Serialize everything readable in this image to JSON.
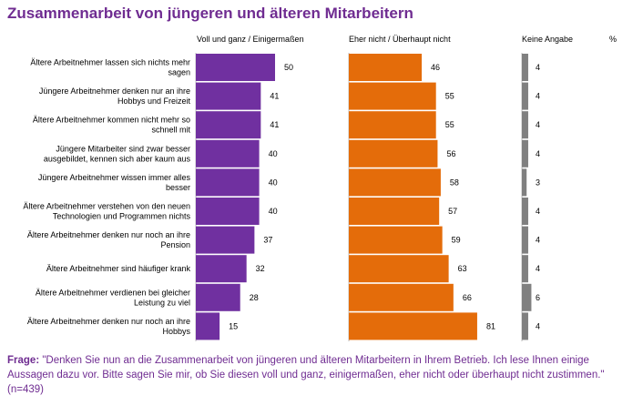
{
  "header": {
    "title": "Zusammenarbeit von jüngeren und älteren Mitarbeitern",
    "col_positive": "Voll und ganz /  Einigermaßen",
    "col_negative": "Eher nicht / Überhaupt nicht",
    "col_none": "Keine Angabe",
    "col_unit": "%"
  },
  "footnote": {
    "label": "Frage:",
    "text": " \"Denken Sie nun an die Zusammenarbeit von jüngeren und älteren Mitarbeitern in Ihrem Betrieb. Ich lese Ihnen einige Aussagen dazu vor. Bitte sagen Sie mir, ob Sie diesen voll und ganz, einigermaßen, eher nicht oder überhaupt nicht zustimmen.\" (n=439)"
  },
  "colors": {
    "positive": "#7030a0",
    "negative": "#e46c0a",
    "none": "#808080",
    "title": "#6f2c91"
  },
  "chart_data": {
    "type": "bar",
    "categories": [
      [
        "Ältere Arbeitnehmer lassen sich nichts  mehr",
        "sagen"
      ],
      [
        "Jüngere Arbeitnehmer denken nur an ihre",
        "Hobbys und Freizeit"
      ],
      [
        "Ältere Arbeitnehmer kommen nicht mehr so",
        "schnell mit"
      ],
      [
        "Jüngere Mitarbeiter sind zwar besser",
        "ausgebildet, kennen sich aber kaum aus"
      ],
      [
        "Jüngere Arbeitnehmer wissen immer alles",
        "besser"
      ],
      [
        "Ältere Arbeitnehmer verstehen von den neuen",
        "Technologien und Programmen nichts"
      ],
      [
        "Ältere Arbeitnehmer denken nur noch an ihre",
        "Pension"
      ],
      [
        "Ältere Arbeitnehmer sind häufiger krank"
      ],
      [
        "Ältere Arbeitnehmer verdienen bei gleicher",
        "Leistung zu viel"
      ],
      [
        "Ältere Arbeitnehmer denken nur noch an ihre",
        "Hobbys"
      ]
    ],
    "series": [
      {
        "name": "Voll und ganz /  Einigermaßen",
        "values": [
          50,
          41,
          41,
          40,
          40,
          40,
          37,
          32,
          28,
          15
        ]
      },
      {
        "name": "Eher nicht / Überhaupt nicht",
        "values": [
          46,
          55,
          55,
          56,
          58,
          57,
          59,
          63,
          66,
          81
        ]
      },
      {
        "name": "Keine Angabe",
        "values": [
          4,
          4,
          4,
          4,
          3,
          4,
          4,
          4,
          6,
          4
        ]
      }
    ],
    "unit": "%"
  }
}
